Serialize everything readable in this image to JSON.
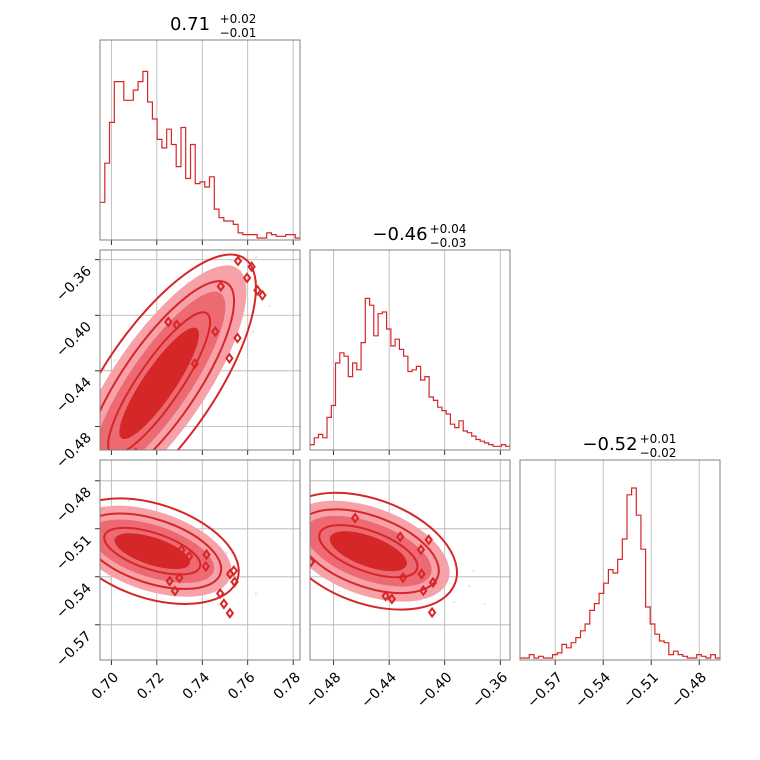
{
  "chart_data": {
    "type": "corner",
    "color": "#d62728",
    "fill_color": "#f7a1a8",
    "grid": true,
    "params": [
      {
        "title": {
          "median": "0.71",
          "plus": "+0.02",
          "minus": "−0.01"
        },
        "range": [
          0.695,
          0.783
        ],
        "ticks": [
          0.7,
          0.72,
          0.74,
          0.76,
          0.78
        ],
        "tick_labels": [
          "0.70",
          "0.72",
          "0.74",
          "0.76",
          "0.78"
        ]
      },
      {
        "title": {
          "median": "−0.46",
          "plus": "+0.04",
          "minus": "−0.03"
        },
        "range": [
          -0.497,
          -0.353
        ],
        "ticks": [
          -0.48,
          -0.44,
          -0.4,
          -0.36
        ],
        "tick_labels": [
          "−0.48",
          "−0.44",
          "−0.40",
          "−0.36"
        ]
      },
      {
        "title": {
          "median": "−0.52",
          "plus": "+0.01",
          "minus": "−0.02"
        },
        "range": [
          -0.592,
          -0.467
        ],
        "ticks": [
          -0.57,
          -0.54,
          -0.51,
          -0.48
        ],
        "tick_labels": [
          "−0.57",
          "−0.54",
          "−0.51",
          "−0.48"
        ]
      }
    ],
    "hist": [
      {
        "counts": [
          0.21,
          0.44,
          0.68,
          0.92,
          0.92,
          0.81,
          0.81,
          0.87,
          0.92,
          0.98,
          0.8,
          0.7,
          0.58,
          0.53,
          0.64,
          0.55,
          0.42,
          0.65,
          0.35,
          0.55,
          0.32,
          0.33,
          0.3,
          0.36,
          0.17,
          0.12,
          0.1,
          0.1,
          0.08,
          0.03,
          0.02,
          0.02,
          0.02,
          0.0,
          0.0,
          0.03,
          0.02,
          0.01,
          0.01,
          0.02,
          0.02,
          0.0
        ]
      },
      {
        "counts": [
          0.02,
          0.06,
          0.08,
          0.06,
          0.18,
          0.25,
          0.5,
          0.56,
          0.54,
          0.42,
          0.5,
          0.46,
          0.62,
          0.88,
          0.84,
          0.66,
          0.79,
          0.8,
          0.7,
          0.6,
          0.64,
          0.58,
          0.54,
          0.45,
          0.46,
          0.48,
          0.4,
          0.42,
          0.3,
          0.28,
          0.24,
          0.22,
          0.2,
          0.14,
          0.12,
          0.16,
          0.1,
          0.09,
          0.07,
          0.05,
          0.04,
          0.03,
          0.02,
          0.01,
          0.01,
          0.02,
          0.01
        ]
      },
      {
        "counts": [
          0.0,
          0.0,
          0.02,
          0.0,
          0.01,
          0.0,
          0.0,
          0.02,
          0.03,
          0.08,
          0.06,
          0.09,
          0.12,
          0.16,
          0.2,
          0.28,
          0.32,
          0.38,
          0.44,
          0.52,
          0.5,
          0.58,
          0.7,
          0.96,
          1.0,
          0.84,
          0.64,
          0.3,
          0.2,
          0.14,
          0.1,
          0.09,
          0.02,
          0.04,
          0.02,
          0.01,
          0.0,
          0.0,
          0.02,
          0.01,
          0.0,
          0.02,
          0.0
        ]
      }
    ],
    "scatter_pairs": [
      {
        "x": 0,
        "y": 1,
        "center": [
          0.721,
          -0.449
        ],
        "axis": [
          0.03,
          0.072
        ],
        "width": [
          0.004,
          0.01
        ]
      },
      {
        "x": 0,
        "y": 2,
        "center": [
          0.718,
          -0.524
        ],
        "axis": [
          0.03,
          -0.014
        ],
        "width": [
          0.0025,
          0.007
        ]
      },
      {
        "x": 1,
        "y": 2,
        "center": [
          -0.455,
          -0.524
        ],
        "axis": [
          0.05,
          -0.016
        ],
        "width": [
          0.003,
          0.008
        ]
      }
    ]
  }
}
